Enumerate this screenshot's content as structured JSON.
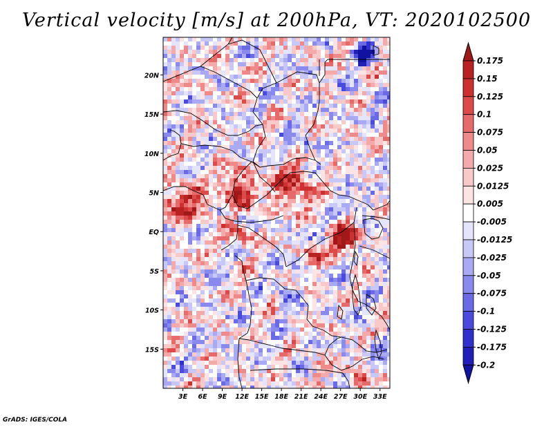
{
  "title": "Vertical velocity [m/s] at 200hPa, VT: 2020102500",
  "footer": "GrADS: IGES/COLA",
  "map": {
    "lon_range": [
      0,
      34.5
    ],
    "lat_range": [
      -20,
      24.8
    ],
    "x_ticks": [
      "3E",
      "6E",
      "9E",
      "12E",
      "15E",
      "18E",
      "21E",
      "24E",
      "27E",
      "30E",
      "33E"
    ],
    "x_tick_values": [
      3,
      6,
      9,
      12,
      15,
      18,
      21,
      24,
      27,
      30,
      33
    ],
    "y_ticks": [
      "20N",
      "15N",
      "10N",
      "5N",
      "EQ",
      "5S",
      "10S",
      "15S"
    ],
    "y_tick_values": [
      20,
      15,
      10,
      5,
      0,
      -5,
      -10,
      -15
    ]
  },
  "colorbar": {
    "labels": [
      "0.175",
      "0.15",
      "0.125",
      "0.1",
      "0.075",
      "0.05",
      "0.025",
      "0.0125",
      "0.005",
      "-0.005",
      "-0.0125",
      "-0.025",
      "-0.05",
      "-0.075",
      "-0.1",
      "-0.125",
      "-0.175",
      "-0.2"
    ],
    "colors": [
      "#a01818",
      "#b82222",
      "#cd3030",
      "#dc4a4a",
      "#e66a6a",
      "#ee8a8a",
      "#f4aaaa",
      "#f9c8c8",
      "#fde4e4",
      "#ffffff",
      "#e4e4fd",
      "#c8c8f8",
      "#aaaaf4",
      "#8a8aee",
      "#6a6ae6",
      "#4a4adc",
      "#3030cd",
      "#2020b8",
      "#1212a0"
    ]
  }
}
